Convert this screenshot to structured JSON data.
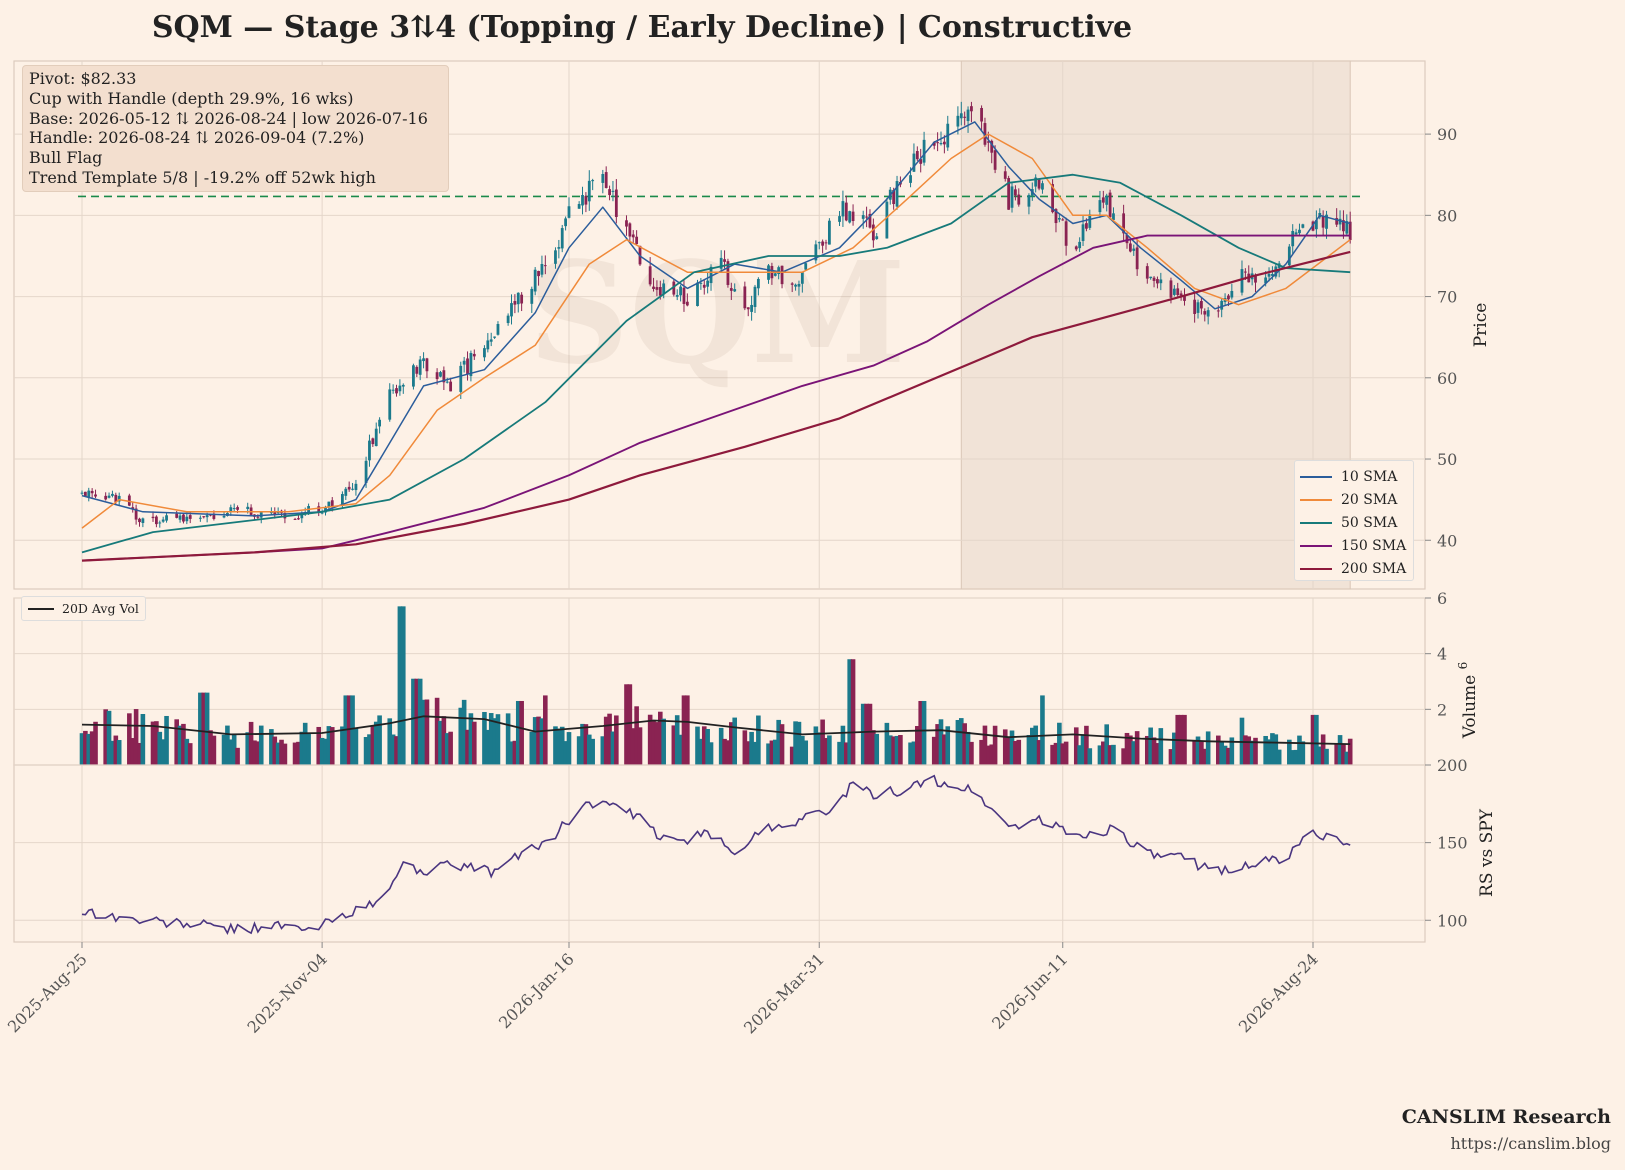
{
  "title": "SQM  —  Stage 3⇅4 (Topping / Early Decline)  |  Constructive",
  "info_box": {
    "lines": [
      "Pivot: $82.33",
      "Cup with Handle  (depth 29.9%, 16 wks)",
      "Base: 2026-05-12 ⇅ 2026-08-24  |  low 2026-07-16",
      "Handle: 2026-08-24 ⇅ 2026-09-04 (7.2%)",
      "Bull Flag",
      "Trend Template 5/8  |  -19.2% off 52wk high"
    ]
  },
  "watermark": "SQM",
  "footer": {
    "name": "CANSLIM Research",
    "url": "https://canslim.blog"
  },
  "colors": {
    "background": "#fdf1e6",
    "up": "#1b7a8c",
    "down": "#8a2352",
    "sma10": "#2b5d9b",
    "sma20": "#f08a3a",
    "sma50": "#177a7a",
    "sma150": "#7a1477",
    "sma200": "#8e1a3c",
    "pivot": "#1a8a4a",
    "rs": "#4a3580",
    "shade": "#f1e3d7",
    "grid": "#e4d6ca"
  },
  "chart_data": [
    {
      "type": "candlestick",
      "panel": "price",
      "ylabel": "Price",
      "ylim": [
        34,
        99
      ],
      "yticks": [
        40,
        50,
        60,
        70,
        80,
        90
      ],
      "x_start": "2025-08-25",
      "x_end": "2026-09-04",
      "xtick_labels": [
        "2025-Aug-25",
        "2025-Nov-04",
        "2026-Jan-16",
        "2026-Mar-31",
        "2026-Jun-11",
        "2026-Aug-24"
      ],
      "pivot": 82.33,
      "shaded_region": [
        "2026-05-12",
        "2026-09-04"
      ],
      "price_anchors": [
        [
          "2025-08-25",
          46
        ],
        [
          "2025-09-05",
          45
        ],
        [
          "2025-09-12",
          42.5
        ],
        [
          "2025-09-25",
          43
        ],
        [
          "2025-10-15",
          43.5
        ],
        [
          "2025-10-25",
          43
        ],
        [
          "2025-11-04",
          44
        ],
        [
          "2025-11-14",
          47
        ],
        [
          "2025-11-24",
          58
        ],
        [
          "2025-12-04",
          62
        ],
        [
          "2025-12-12",
          59
        ],
        [
          "2025-12-22",
          64
        ],
        [
          "2026-01-02",
          70
        ],
        [
          "2026-01-12",
          76
        ],
        [
          "2026-01-16",
          81
        ],
        [
          "2026-01-26",
          84
        ],
        [
          "2026-02-02",
          79
        ],
        [
          "2026-02-10",
          71
        ],
        [
          "2026-02-20",
          70
        ],
        [
          "2026-03-02",
          74
        ],
        [
          "2026-03-09",
          69
        ],
        [
          "2026-03-16",
          73
        ],
        [
          "2026-03-26",
          72
        ],
        [
          "2026-04-06",
          81
        ],
        [
          "2026-04-16",
          78
        ],
        [
          "2026-04-26",
          86
        ],
        [
          "2026-05-04",
          89
        ],
        [
          "2026-05-16",
          92
        ],
        [
          "2026-05-26",
          82
        ],
        [
          "2026-06-04",
          84
        ],
        [
          "2026-06-14",
          76
        ],
        [
          "2026-06-24",
          82
        ],
        [
          "2026-07-04",
          73
        ],
        [
          "2026-07-14",
          70
        ],
        [
          "2026-07-24",
          68
        ],
        [
          "2026-08-02",
          72
        ],
        [
          "2026-08-12",
          73
        ],
        [
          "2026-08-20",
          78
        ],
        [
          "2026-08-26",
          79
        ],
        [
          "2026-09-04",
          78
        ]
      ],
      "series": [
        {
          "name": "10 SMA",
          "values": [
            [
              "2025-08-25",
              45.5
            ],
            [
              "2025-09-12",
              43.5
            ],
            [
              "2025-10-15",
              43
            ],
            [
              "2025-11-04",
              43.5
            ],
            [
              "2025-11-14",
              45
            ],
            [
              "2025-11-24",
              52
            ],
            [
              "2025-12-04",
              59
            ],
            [
              "2025-12-22",
              61
            ],
            [
              "2026-01-06",
              68
            ],
            [
              "2026-01-16",
              76
            ],
            [
              "2026-01-26",
              81
            ],
            [
              "2026-02-06",
              75
            ],
            [
              "2026-02-20",
              71
            ],
            [
              "2026-03-06",
              74
            ],
            [
              "2026-03-20",
              73
            ],
            [
              "2026-04-06",
              76
            ],
            [
              "2026-04-20",
              82
            ],
            [
              "2026-05-04",
              89
            ],
            [
              "2026-05-16",
              91.5
            ],
            [
              "2026-05-26",
              86
            ],
            [
              "2026-06-04",
              82
            ],
            [
              "2026-06-14",
              79
            ],
            [
              "2026-06-24",
              80
            ],
            [
              "2026-07-04",
              76
            ],
            [
              "2026-07-16",
              72
            ],
            [
              "2026-07-26",
              68.5
            ],
            [
              "2026-08-06",
              70
            ],
            [
              "2026-08-16",
              74
            ],
            [
              "2026-08-26",
              80
            ],
            [
              "2026-09-04",
              79
            ]
          ]
        },
        {
          "name": "20 SMA",
          "values": [
            [
              "2025-08-25",
              41.5
            ],
            [
              "2025-09-05",
              45
            ],
            [
              "2025-09-25",
              43.5
            ],
            [
              "2025-10-25",
              43.5
            ],
            [
              "2025-11-14",
              44.5
            ],
            [
              "2025-11-24",
              48
            ],
            [
              "2025-12-08",
              56
            ],
            [
              "2025-12-22",
              60
            ],
            [
              "2026-01-06",
              64
            ],
            [
              "2026-01-22",
              74
            ],
            [
              "2026-02-02",
              77
            ],
            [
              "2026-02-20",
              73
            ],
            [
              "2026-03-09",
              73
            ],
            [
              "2026-03-26",
              73
            ],
            [
              "2026-04-10",
              76
            ],
            [
              "2026-04-26",
              82
            ],
            [
              "2026-05-09",
              87
            ],
            [
              "2026-05-20",
              90
            ],
            [
              "2026-06-02",
              87
            ],
            [
              "2026-06-14",
              80
            ],
            [
              "2026-06-24",
              80
            ],
            [
              "2026-07-06",
              76
            ],
            [
              "2026-07-20",
              71
            ],
            [
              "2026-08-02",
              69
            ],
            [
              "2026-08-16",
              71
            ],
            [
              "2026-09-04",
              77
            ]
          ]
        },
        {
          "name": "50 SMA",
          "values": [
            [
              "2025-08-25",
              38.5
            ],
            [
              "2025-09-15",
              41
            ],
            [
              "2025-10-15",
              42.5
            ],
            [
              "2025-11-04",
              43.5
            ],
            [
              "2025-11-24",
              45
            ],
            [
              "2025-12-16",
              50
            ],
            [
              "2026-01-09",
              57
            ],
            [
              "2026-02-02",
              67
            ],
            [
              "2026-02-22",
              73
            ],
            [
              "2026-03-16",
              75
            ],
            [
              "2026-04-06",
              75
            ],
            [
              "2026-04-20",
              76
            ],
            [
              "2026-05-09",
              79
            ],
            [
              "2026-05-26",
              84
            ],
            [
              "2026-06-14",
              85
            ],
            [
              "2026-06-28",
              84
            ],
            [
              "2026-07-16",
              80
            ],
            [
              "2026-08-02",
              76
            ],
            [
              "2026-08-16",
              73.5
            ],
            [
              "2026-09-04",
              73
            ]
          ]
        },
        {
          "name": "150 SMA",
          "values": [
            [
              "2025-08-25",
              37.5
            ],
            [
              "2025-10-15",
              38.5
            ],
            [
              "2025-11-04",
              39
            ],
            [
              "2025-11-24",
              41
            ],
            [
              "2025-12-22",
              44
            ],
            [
              "2026-01-16",
              48
            ],
            [
              "2026-02-06",
              52
            ],
            [
              "2026-03-02",
              55.5
            ],
            [
              "2026-03-26",
              59
            ],
            [
              "2026-04-16",
              61.5
            ],
            [
              "2026-05-02",
              64.5
            ],
            [
              "2026-05-20",
              69
            ],
            [
              "2026-06-04",
              72.5
            ],
            [
              "2026-06-20",
              76
            ],
            [
              "2026-07-06",
              77.5
            ],
            [
              "2026-07-26",
              77.5
            ],
            [
              "2026-08-16",
              77.5
            ],
            [
              "2026-09-04",
              77.5
            ]
          ]
        },
        {
          "name": "200 SMA",
          "values": [
            [
              "2025-08-25",
              37.5
            ],
            [
              "2025-10-15",
              38.5
            ],
            [
              "2025-11-14",
              39.5
            ],
            [
              "2025-12-16",
              42
            ],
            [
              "2026-01-16",
              45
            ],
            [
              "2026-02-06",
              48
            ],
            [
              "2026-03-09",
              51.5
            ],
            [
              "2026-04-06",
              55
            ],
            [
              "2026-04-26",
              58.5
            ],
            [
              "2026-05-16",
              62
            ],
            [
              "2026-06-02",
              65
            ],
            [
              "2026-06-24",
              67.5
            ],
            [
              "2026-07-16",
              70
            ],
            [
              "2026-08-06",
              72.5
            ],
            [
              "2026-09-04",
              75.5
            ]
          ]
        }
      ]
    },
    {
      "type": "bar",
      "panel": "volume",
      "ylabel": "Volume",
      "ylabel_multiplier": "10^6",
      "ylim": [
        0,
        6
      ],
      "yticks": [
        2,
        4,
        6
      ],
      "volume_spikes": [
        [
          "2025-09-30",
          2.6
        ],
        [
          "2025-11-12",
          2.5
        ],
        [
          "2025-11-28",
          5.7
        ],
        [
          "2025-12-02",
          3.1
        ],
        [
          "2026-01-02",
          2.3
        ],
        [
          "2026-01-10",
          2.5
        ],
        [
          "2026-02-02",
          2.9
        ],
        [
          "2026-02-20",
          2.5
        ],
        [
          "2026-04-10",
          3.8
        ],
        [
          "2026-04-14",
          2.2
        ],
        [
          "2026-05-01",
          2.3
        ],
        [
          "2026-06-06",
          2.5
        ],
        [
          "2026-07-16",
          1.8
        ],
        [
          "2026-08-02",
          1.7
        ],
        [
          "2026-08-24",
          1.8
        ]
      ],
      "series": [
        {
          "name": "20D Avg Vol",
          "values": [
            [
              "2025-08-25",
              1.45
            ],
            [
              "2025-09-15",
              1.4
            ],
            [
              "2025-10-08",
              1.1
            ],
            [
              "2025-11-04",
              1.15
            ],
            [
              "2025-11-24",
              1.5
            ],
            [
              "2025-12-04",
              1.75
            ],
            [
              "2025-12-22",
              1.65
            ],
            [
              "2026-01-06",
              1.2
            ],
            [
              "2026-01-26",
              1.4
            ],
            [
              "2026-02-10",
              1.6
            ],
            [
              "2026-02-20",
              1.55
            ],
            [
              "2026-03-06",
              1.35
            ],
            [
              "2026-03-26",
              1.1
            ],
            [
              "2026-04-16",
              1.2
            ],
            [
              "2026-05-06",
              1.25
            ],
            [
              "2026-05-26",
              1.0
            ],
            [
              "2026-06-14",
              1.1
            ],
            [
              "2026-07-04",
              0.95
            ],
            [
              "2026-07-24",
              0.85
            ],
            [
              "2026-08-14",
              0.8
            ],
            [
              "2026-09-04",
              0.75
            ]
          ]
        }
      ]
    },
    {
      "type": "line",
      "panel": "relative_strength",
      "ylabel": "RS vs SPY",
      "ylim": [
        86,
        200
      ],
      "yticks": [
        100,
        150,
        200
      ],
      "series": [
        {
          "name": "RS",
          "values": [
            [
              "2025-08-25",
              106
            ],
            [
              "2025-09-10",
              100
            ],
            [
              "2025-09-30",
              97
            ],
            [
              "2025-10-10",
              94
            ],
            [
              "2025-10-20",
              97
            ],
            [
              "2025-11-01",
              93
            ],
            [
              "2025-11-10",
              104
            ],
            [
              "2025-11-20",
              110
            ],
            [
              "2025-11-28",
              135
            ],
            [
              "2025-12-04",
              132
            ],
            [
              "2025-12-14",
              136
            ],
            [
              "2025-12-24",
              131
            ],
            [
              "2026-01-04",
              145
            ],
            [
              "2026-01-12",
              155
            ],
            [
              "2026-01-20",
              175
            ],
            [
              "2026-01-28",
              175
            ],
            [
              "2026-02-06",
              165
            ],
            [
              "2026-02-14",
              150
            ],
            [
              "2026-02-26",
              155
            ],
            [
              "2026-03-06",
              145
            ],
            [
              "2026-03-16",
              160
            ],
            [
              "2026-03-26",
              165
            ],
            [
              "2026-04-06",
              175
            ],
            [
              "2026-04-10",
              188
            ],
            [
              "2026-04-16",
              180
            ],
            [
              "2026-04-26",
              185
            ],
            [
              "2026-05-04",
              190
            ],
            [
              "2026-05-16",
              183
            ],
            [
              "2026-05-26",
              160
            ],
            [
              "2026-06-04",
              165
            ],
            [
              "2026-06-14",
              155
            ],
            [
              "2026-06-20",
              155
            ],
            [
              "2026-06-26",
              160
            ],
            [
              "2026-07-06",
              142
            ],
            [
              "2026-07-16",
              140
            ],
            [
              "2026-07-26",
              132
            ],
            [
              "2026-08-06",
              136
            ],
            [
              "2026-08-16",
              140
            ],
            [
              "2026-08-24",
              158
            ],
            [
              "2026-08-30",
              152
            ],
            [
              "2026-09-04",
              145
            ]
          ]
        }
      ]
    }
  ]
}
